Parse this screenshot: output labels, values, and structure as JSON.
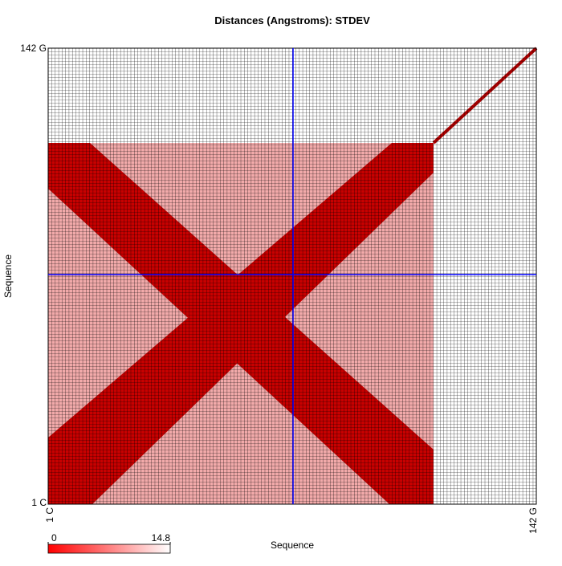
{
  "chart_data": {
    "type": "heatmap",
    "title": "Distances (Angstroms):  STDEV",
    "x_label": "Sequence",
    "y_label": "Sequence",
    "y_tick_labels": [
      "1 C",
      "142 G"
    ],
    "x_tick_labels": [
      "1 C",
      "142 G"
    ],
    "colorbar": {
      "min": 0,
      "max": 14.8,
      "colors": [
        "#ff0000",
        "#ffffff"
      ]
    },
    "crosshair_color": "#0000ff"
  }
}
